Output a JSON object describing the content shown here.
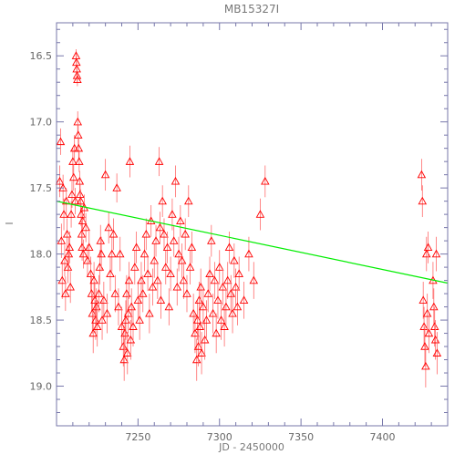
{
  "chart_data": {
    "type": "scatter",
    "title": "MB15327I",
    "xlabel": "JD - 2450000",
    "ylabel": "I",
    "xlim": [
      7200,
      7440
    ],
    "ylim": [
      19.3,
      16.25
    ],
    "y_inverted": true,
    "x_ticks": [
      7250,
      7300,
      7350,
      7400
    ],
    "x_tick_labels": [
      "7250",
      "7300",
      "7350",
      "7400"
    ],
    "y_ticks": [
      16.5,
      17.0,
      17.5,
      18.0,
      18.5,
      19.0
    ],
    "y_tick_labels": [
      "16.5",
      "17.0",
      "17.5",
      "18.0",
      "18.5",
      "19.0"
    ],
    "grid": false,
    "legend": "none",
    "colors": {
      "points": "#ff0000",
      "errorbars": "#ff6a6a",
      "fit": "#00ee00",
      "axes": "#7777aa"
    },
    "marker": "triangle-open",
    "series": [
      {
        "points": [
          [
            7202,
            17.45,
            0.12
          ],
          [
            7202.5,
            17.15,
            0.1
          ],
          [
            7203,
            17.9,
            0.13
          ],
          [
            7203.5,
            18.2,
            0.14
          ],
          [
            7204,
            17.5,
            0.1
          ],
          [
            7204.5,
            17.7,
            0.12
          ],
          [
            7205,
            18.05,
            0.12
          ],
          [
            7205.5,
            18.3,
            0.13
          ],
          [
            7206,
            17.6,
            0.1
          ],
          [
            7206.5,
            17.85,
            0.12
          ],
          [
            7207,
            18.1,
            0.12
          ],
          [
            7207.5,
            18.0,
            0.13
          ],
          [
            7208,
            17.95,
            0.12
          ],
          [
            7208.5,
            18.25,
            0.12
          ],
          [
            7209,
            17.7,
            0.1
          ],
          [
            7209.5,
            17.55,
            0.1
          ],
          [
            7210,
            17.3,
            0.1
          ],
          [
            7210.5,
            17.42,
            0.1
          ],
          [
            7211,
            17.2,
            0.1
          ],
          [
            7211.5,
            17.6,
            0.1
          ],
          [
            7212,
            16.5,
            0.05
          ],
          [
            7212.2,
            16.55,
            0.05
          ],
          [
            7212.4,
            16.6,
            0.05
          ],
          [
            7212.6,
            16.65,
            0.05
          ],
          [
            7212.8,
            16.68,
            0.05
          ],
          [
            7213,
            17.0,
            0.08
          ],
          [
            7213.3,
            17.1,
            0.08
          ],
          [
            7213.6,
            17.2,
            0.08
          ],
          [
            7213.9,
            17.3,
            0.08
          ],
          [
            7214.2,
            17.45,
            0.08
          ],
          [
            7214.5,
            17.55,
            0.08
          ],
          [
            7214.8,
            17.6,
            0.09
          ],
          [
            7215.1,
            17.7,
            0.09
          ],
          [
            7215.4,
            17.85,
            0.1
          ],
          [
            7215.7,
            17.95,
            0.1
          ],
          [
            7216,
            17.75,
            0.1
          ],
          [
            7216.5,
            18.0,
            0.11
          ],
          [
            7217,
            17.65,
            0.1
          ],
          [
            7218,
            17.8,
            0.11
          ],
          [
            7219,
            18.05,
            0.12
          ],
          [
            7220,
            17.95,
            0.12
          ],
          [
            7221,
            18.15,
            0.13
          ],
          [
            7221.5,
            18.3,
            0.14
          ],
          [
            7222,
            18.45,
            0.15
          ],
          [
            7222.5,
            18.6,
            0.15
          ],
          [
            7223,
            18.2,
            0.14
          ],
          [
            7223.5,
            18.35,
            0.14
          ],
          [
            7224,
            18.5,
            0.15
          ],
          [
            7224.5,
            18.4,
            0.14
          ],
          [
            7225,
            18.55,
            0.15
          ],
          [
            7226,
            18.3,
            0.14
          ],
          [
            7226.5,
            18.1,
            0.13
          ],
          [
            7227,
            17.9,
            0.12
          ],
          [
            7227.5,
            18.0,
            0.13
          ],
          [
            7228,
            18.5,
            0.15
          ],
          [
            7229,
            18.35,
            0.14
          ],
          [
            7230,
            17.4,
            0.12
          ],
          [
            7231,
            18.45,
            0.15
          ],
          [
            7232,
            17.8,
            0.12
          ],
          [
            7233,
            18.15,
            0.13
          ],
          [
            7234,
            18.0,
            0.13
          ],
          [
            7235,
            17.85,
            0.12
          ],
          [
            7236,
            18.3,
            0.14
          ],
          [
            7237,
            17.5,
            0.11
          ],
          [
            7238,
            18.4,
            0.14
          ],
          [
            7239,
            18.0,
            0.13
          ],
          [
            7240,
            18.55,
            0.15
          ],
          [
            7241,
            18.7,
            0.15
          ],
          [
            7241.5,
            18.8,
            0.16
          ],
          [
            7242,
            18.6,
            0.15
          ],
          [
            7242.5,
            18.5,
            0.15
          ],
          [
            7243,
            18.3,
            0.14
          ],
          [
            7243.5,
            18.75,
            0.16
          ],
          [
            7244,
            18.45,
            0.15
          ],
          [
            7244.5,
            18.2,
            0.14
          ],
          [
            7245,
            17.3,
            0.12
          ],
          [
            7245.5,
            18.65,
            0.15
          ],
          [
            7246,
            18.4,
            0.14
          ],
          [
            7247,
            18.55,
            0.15
          ],
          [
            7248,
            18.1,
            0.13
          ],
          [
            7249,
            17.95,
            0.12
          ],
          [
            7250,
            18.35,
            0.14
          ],
          [
            7251,
            18.5,
            0.15
          ],
          [
            7252,
            18.2,
            0.14
          ],
          [
            7253,
            18.3,
            0.14
          ],
          [
            7254,
            18.0,
            0.13
          ],
          [
            7255,
            17.85,
            0.12
          ],
          [
            7256,
            18.15,
            0.13
          ],
          [
            7257,
            18.45,
            0.15
          ],
          [
            7258,
            17.75,
            0.12
          ],
          [
            7259,
            18.25,
            0.14
          ],
          [
            7260,
            18.05,
            0.13
          ],
          [
            7261,
            17.9,
            0.12
          ],
          [
            7262,
            18.2,
            0.14
          ],
          [
            7263,
            17.3,
            0.11
          ],
          [
            7263.5,
            17.8,
            0.12
          ],
          [
            7264,
            18.35,
            0.14
          ],
          [
            7265,
            17.6,
            0.12
          ],
          [
            7266,
            17.85,
            0.12
          ],
          [
            7267,
            18.1,
            0.13
          ],
          [
            7268,
            17.95,
            0.12
          ],
          [
            7269,
            18.4,
            0.14
          ],
          [
            7270,
            18.15,
            0.13
          ],
          [
            7271,
            17.7,
            0.12
          ],
          [
            7272,
            17.9,
            0.12
          ],
          [
            7273,
            17.45,
            0.12
          ],
          [
            7274,
            18.25,
            0.14
          ],
          [
            7275,
            18.0,
            0.13
          ],
          [
            7276,
            17.75,
            0.12
          ],
          [
            7277,
            18.05,
            0.13
          ],
          [
            7278,
            18.2,
            0.14
          ],
          [
            7279,
            17.85,
            0.12
          ],
          [
            7280,
            18.3,
            0.14
          ],
          [
            7281,
            17.6,
            0.12
          ],
          [
            7282,
            18.1,
            0.13
          ],
          [
            7283,
            17.95,
            0.12
          ],
          [
            7284,
            18.45,
            0.15
          ],
          [
            7285,
            18.6,
            0.15
          ],
          [
            7286,
            18.8,
            0.16
          ],
          [
            7286.5,
            18.5,
            0.15
          ],
          [
            7287,
            18.7,
            0.15
          ],
          [
            7287.5,
            18.35,
            0.14
          ],
          [
            7288,
            18.55,
            0.15
          ],
          [
            7288.5,
            18.25,
            0.14
          ],
          [
            7289,
            18.75,
            0.16
          ],
          [
            7290,
            18.4,
            0.14
          ],
          [
            7291,
            18.65,
            0.15
          ],
          [
            7292,
            18.5,
            0.15
          ],
          [
            7293,
            18.3,
            0.14
          ],
          [
            7294,
            18.15,
            0.13
          ],
          [
            7295,
            17.9,
            0.12
          ],
          [
            7296,
            18.45,
            0.15
          ],
          [
            7297,
            18.2,
            0.14
          ],
          [
            7298,
            18.6,
            0.15
          ],
          [
            7299,
            18.35,
            0.14
          ],
          [
            7300,
            18.1,
            0.13
          ],
          [
            7301,
            18.5,
            0.15
          ],
          [
            7302,
            18.25,
            0.14
          ],
          [
            7303,
            18.55,
            0.15
          ],
          [
            7304,
            18.4,
            0.14
          ],
          [
            7305,
            18.2,
            0.14
          ],
          [
            7306,
            17.95,
            0.12
          ],
          [
            7307,
            18.3,
            0.14
          ],
          [
            7308,
            18.45,
            0.15
          ],
          [
            7309,
            18.05,
            0.13
          ],
          [
            7310,
            18.25,
            0.14
          ],
          [
            7311,
            18.4,
            0.14
          ],
          [
            7312,
            18.15,
            0.13
          ],
          [
            7315,
            18.35,
            0.14
          ],
          [
            7318,
            18.0,
            0.13
          ],
          [
            7321,
            18.2,
            0.14
          ],
          [
            7325,
            17.7,
            0.12
          ],
          [
            7328,
            17.45,
            0.12
          ],
          [
            7424,
            17.4,
            0.12
          ],
          [
            7424.5,
            17.6,
            0.12
          ],
          [
            7425,
            18.35,
            0.14
          ],
          [
            7425.5,
            18.55,
            0.15
          ],
          [
            7426,
            18.7,
            0.15
          ],
          [
            7426.5,
            18.85,
            0.16
          ],
          [
            7427,
            18.0,
            0.13
          ],
          [
            7427.5,
            18.45,
            0.15
          ],
          [
            7428,
            17.95,
            0.12
          ],
          [
            7428.5,
            18.6,
            0.15
          ],
          [
            7431,
            18.2,
            0.14
          ],
          [
            7431.5,
            18.4,
            0.14
          ],
          [
            7432,
            18.55,
            0.15
          ],
          [
            7432.5,
            18.65,
            0.15
          ],
          [
            7433,
            18.0,
            0.13
          ],
          [
            7433.5,
            18.75,
            0.16
          ]
        ]
      }
    ],
    "fit_line": {
      "x": [
        7200,
        7440
      ],
      "y": [
        17.6,
        18.22
      ]
    }
  }
}
